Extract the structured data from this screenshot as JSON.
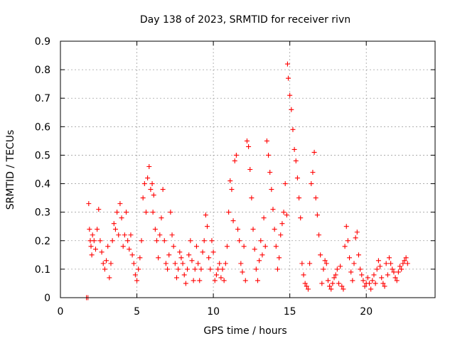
{
  "chart_data": {
    "type": "scatter",
    "title": "Day 138 of 2023, SRMTID for receiver rivn",
    "xlabel": "GPS time / hours",
    "ylabel": "SRMTID / TECUs",
    "xlim": [
      0,
      24.5
    ],
    "ylim": [
      0,
      0.9
    ],
    "x_ticks": [
      0,
      5,
      10,
      15,
      20
    ],
    "x_tick_labels": [
      "0",
      "5",
      "10",
      "15",
      "20"
    ],
    "y_ticks": [
      0,
      0.1,
      0.2,
      0.3,
      0.4,
      0.5,
      0.6,
      0.7,
      0.8,
      0.9
    ],
    "y_tick_labels": [
      "0",
      "0.1",
      "0.2",
      "0.3",
      "0.4",
      "0.5",
      "0.6",
      "0.7",
      "0.8",
      "0.9"
    ],
    "grid": true,
    "marker": "+",
    "color": "#ff0000",
    "series": [
      {
        "name": "SRMTID",
        "x": [
          1.7,
          1.8,
          1.85,
          1.9,
          1.95,
          2.0,
          2.05,
          2.1,
          2.2,
          2.3,
          2.4,
          2.5,
          2.6,
          2.7,
          2.8,
          2.9,
          3.0,
          3.1,
          3.2,
          3.3,
          3.4,
          3.5,
          3.6,
          3.7,
          3.8,
          3.9,
          4.0,
          4.1,
          4.2,
          4.3,
          4.4,
          4.5,
          4.6,
          4.7,
          4.8,
          4.9,
          5.0,
          5.1,
          5.2,
          5.3,
          5.4,
          5.5,
          5.6,
          5.7,
          5.8,
          5.9,
          6.0,
          6.05,
          6.1,
          6.2,
          6.3,
          6.4,
          6.5,
          6.6,
          6.7,
          6.8,
          6.9,
          7.0,
          7.1,
          7.2,
          7.3,
          7.4,
          7.5,
          7.6,
          7.7,
          7.8,
          7.9,
          8.0,
          8.1,
          8.2,
          8.3,
          8.4,
          8.5,
          8.6,
          8.7,
          8.8,
          8.9,
          9.0,
          9.1,
          9.2,
          9.3,
          9.4,
          9.5,
          9.6,
          9.7,
          9.8,
          9.9,
          10.0,
          10.1,
          10.2,
          10.3,
          10.4,
          10.5,
          10.6,
          10.7,
          10.8,
          10.9,
          11.0,
          11.1,
          11.2,
          11.3,
          11.4,
          11.5,
          11.6,
          11.7,
          11.8,
          11.9,
          12.0,
          12.1,
          12.2,
          12.3,
          12.4,
          12.5,
          12.6,
          12.7,
          12.8,
          12.9,
          13.0,
          13.1,
          13.2,
          13.3,
          13.4,
          13.5,
          13.6,
          13.7,
          13.8,
          13.9,
          14.0,
          14.1,
          14.2,
          14.3,
          14.4,
          14.5,
          14.6,
          14.7,
          14.8,
          14.85,
          14.9,
          15.0,
          15.1,
          15.2,
          15.3,
          15.4,
          15.5,
          15.6,
          15.7,
          15.8,
          15.9,
          16.0,
          16.1,
          16.2,
          16.3,
          16.4,
          16.5,
          16.6,
          16.7,
          16.8,
          16.9,
          17.0,
          17.1,
          17.2,
          17.3,
          17.4,
          17.5,
          17.6,
          17.7,
          17.8,
          17.9,
          18.0,
          18.1,
          18.2,
          18.3,
          18.4,
          18.5,
          18.6,
          18.7,
          18.8,
          18.9,
          19.0,
          19.1,
          19.2,
          19.3,
          19.4,
          19.5,
          19.6,
          19.7,
          19.8,
          19.9,
          20.0,
          20.1,
          20.2,
          20.3,
          20.4,
          20.5,
          20.6,
          20.7,
          20.8,
          20.9,
          21.0,
          21.1,
          21.2,
          21.3,
          21.4,
          21.5,
          21.6,
          21.7,
          21.8,
          21.9,
          22.0,
          22.1,
          22.2,
          22.3,
          22.4,
          22.5,
          22.6,
          22.7
        ],
        "y": [
          0.0,
          0.0,
          0.33,
          0.24,
          0.2,
          0.18,
          0.15,
          0.22,
          0.2,
          0.17,
          0.24,
          0.31,
          0.2,
          0.16,
          0.12,
          0.1,
          0.13,
          0.18,
          0.07,
          0.12,
          0.2,
          0.26,
          0.24,
          0.3,
          0.22,
          0.33,
          0.28,
          0.18,
          0.22,
          0.3,
          0.2,
          0.17,
          0.22,
          0.15,
          0.12,
          0.08,
          0.06,
          0.1,
          0.14,
          0.2,
          0.35,
          0.4,
          0.3,
          0.42,
          0.46,
          0.38,
          0.4,
          0.3,
          0.36,
          0.24,
          0.2,
          0.14,
          0.22,
          0.28,
          0.38,
          0.2,
          0.12,
          0.1,
          0.15,
          0.3,
          0.22,
          0.18,
          0.12,
          0.07,
          0.1,
          0.16,
          0.14,
          0.12,
          0.08,
          0.05,
          0.1,
          0.15,
          0.2,
          0.13,
          0.06,
          0.1,
          0.18,
          0.12,
          0.06,
          0.1,
          0.16,
          0.2,
          0.29,
          0.25,
          0.14,
          0.1,
          0.2,
          0.16,
          0.06,
          0.08,
          0.1,
          0.12,
          0.07,
          0.1,
          0.06,
          0.12,
          0.18,
          0.3,
          0.41,
          0.38,
          0.27,
          0.48,
          0.5,
          0.24,
          0.2,
          0.12,
          0.09,
          0.18,
          0.06,
          0.55,
          0.53,
          0.45,
          0.35,
          0.24,
          0.17,
          0.1,
          0.06,
          0.13,
          0.2,
          0.15,
          0.28,
          0.18,
          0.55,
          0.5,
          0.44,
          0.38,
          0.31,
          0.24,
          0.18,
          0.1,
          0.14,
          0.22,
          0.26,
          0.3,
          0.4,
          0.29,
          0.82,
          0.77,
          0.71,
          0.66,
          0.59,
          0.52,
          0.48,
          0.42,
          0.35,
          0.28,
          0.12,
          0.08,
          0.05,
          0.04,
          0.03,
          0.12,
          0.4,
          0.44,
          0.51,
          0.35,
          0.29,
          0.22,
          0.15,
          0.05,
          0.1,
          0.13,
          0.12,
          0.06,
          0.04,
          0.03,
          0.05,
          0.07,
          0.08,
          0.1,
          0.05,
          0.11,
          0.04,
          0.03,
          0.18,
          0.25,
          0.2,
          0.14,
          0.09,
          0.06,
          0.12,
          0.21,
          0.23,
          0.15,
          0.1,
          0.08,
          0.06,
          0.04,
          0.05,
          0.07,
          0.05,
          0.03,
          0.06,
          0.08,
          0.05,
          0.1,
          0.13,
          0.11,
          0.07,
          0.05,
          0.04,
          0.12,
          0.08,
          0.14,
          0.12,
          0.1,
          0.09,
          0.07,
          0.06,
          0.09,
          0.11,
          0.1,
          0.12,
          0.13,
          0.14,
          0.12
        ]
      }
    ]
  }
}
